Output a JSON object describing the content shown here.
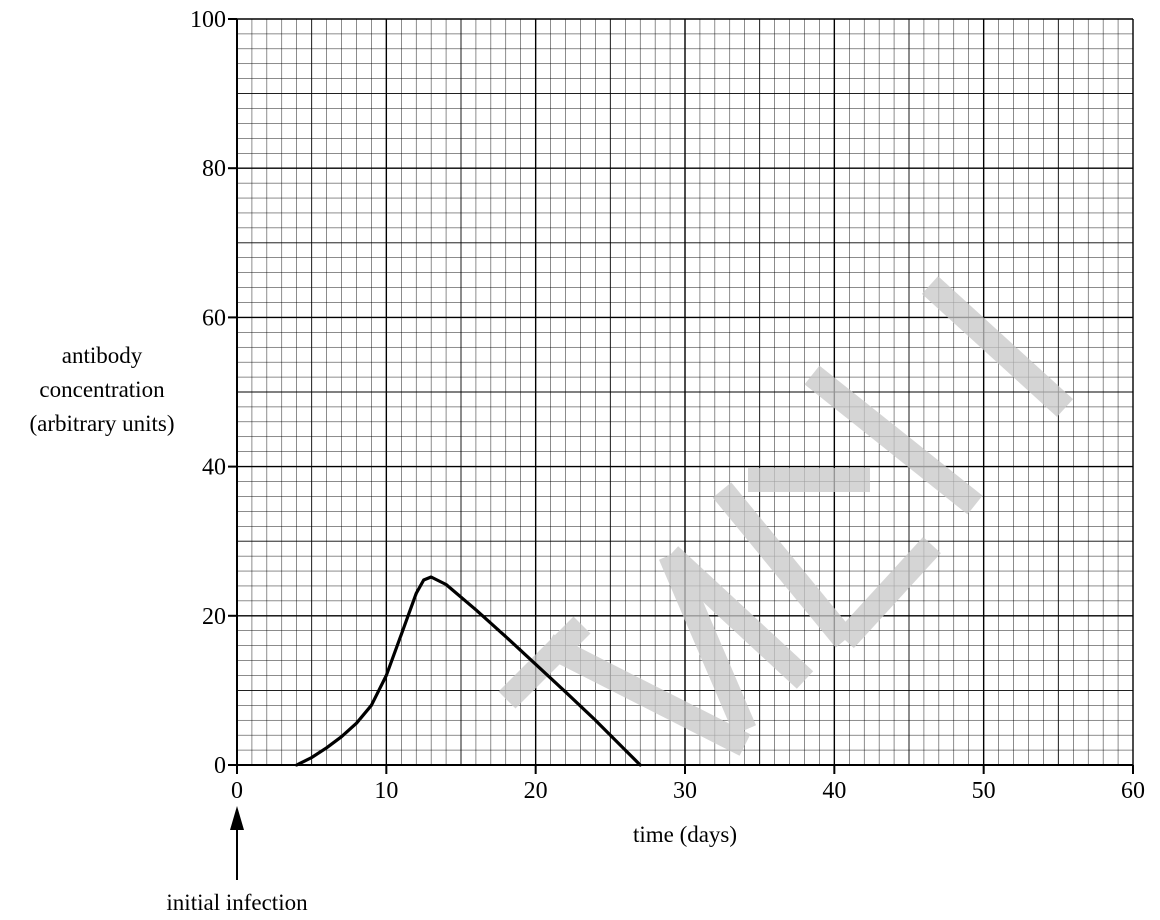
{
  "chart_data": {
    "type": "line",
    "xlabel": "time (days)",
    "ylabel": [
      "antibody",
      "concentration",
      "(arbitrary units)"
    ],
    "xlim": [
      0,
      60
    ],
    "ylim": [
      0,
      100
    ],
    "xticks": [
      "0",
      "10",
      "20",
      "30",
      "40",
      "50",
      "60"
    ],
    "yticks": [
      "0",
      "20",
      "40",
      "60",
      "80",
      "100"
    ],
    "grid": true,
    "annotation": "initial infection",
    "annotation_x": 0,
    "watermark": "SPECIMEN",
    "series": [
      {
        "x": [
          4,
          5,
          6,
          7,
          8,
          9,
          10,
          11,
          12,
          12.5,
          13,
          14,
          16,
          18,
          20,
          22,
          24,
          26,
          27
        ],
        "y": [
          0,
          1,
          2.3,
          3.8,
          5.6,
          8,
          12,
          17.5,
          23,
          24.8,
          25.2,
          24.2,
          20.8,
          17.2,
          13.5,
          9.8,
          6,
          2,
          0
        ]
      }
    ]
  }
}
